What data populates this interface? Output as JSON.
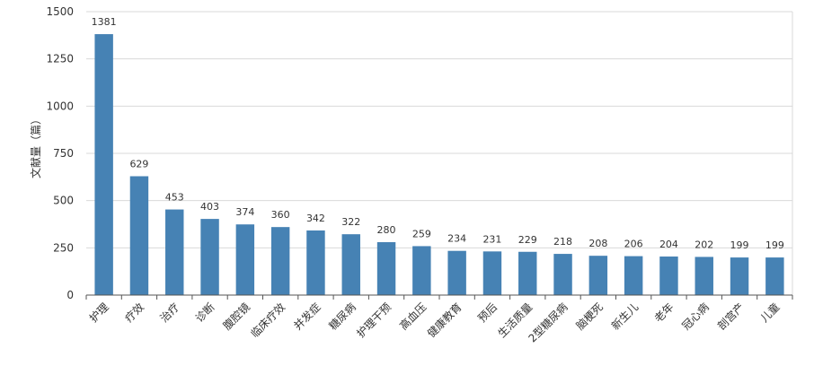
{
  "chart_data": {
    "type": "bar",
    "ylabel": "文献量（篇）",
    "ylim": [
      0,
      1500
    ],
    "yticks": [
      0,
      250,
      500,
      750,
      1000,
      1250,
      1500
    ],
    "grid": true,
    "categories": [
      "护理",
      "疗效",
      "治疗",
      "诊断",
      "腹腔镜",
      "临床疗效",
      "并发症",
      "糖尿病",
      "护理干预",
      "高血压",
      "健康教育",
      "预后",
      "生活质量",
      "2型糖尿病",
      "脑梗死",
      "新生儿",
      "老年",
      "冠心病",
      "剖宫产",
      "儿童"
    ],
    "values": [
      1381,
      629,
      453,
      403,
      374,
      360,
      342,
      322,
      280,
      259,
      234,
      231,
      229,
      218,
      208,
      206,
      204,
      202,
      199,
      199
    ],
    "bar_color": "#4682b4"
  }
}
